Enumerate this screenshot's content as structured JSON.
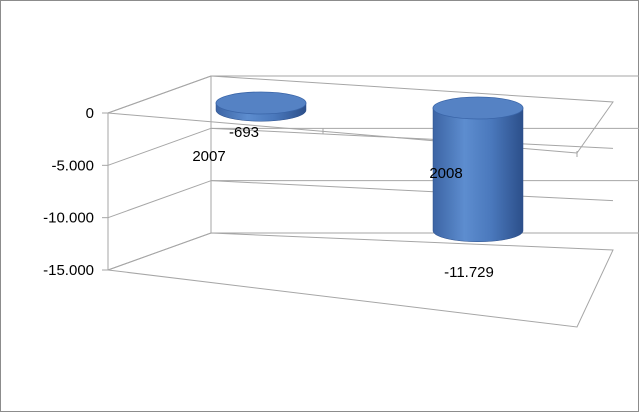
{
  "chart_data": {
    "type": "bar",
    "style": "3d-cylinder",
    "categories": [
      "2007",
      "2008"
    ],
    "series": [
      {
        "values": [
          -693,
          -11729
        ]
      }
    ],
    "value_labels": [
      "-693",
      "-11.729"
    ],
    "ylim": [
      -15000,
      0
    ],
    "yticks": [
      0,
      -5000,
      -10000,
      -15000
    ],
    "ytick_labels": [
      "0",
      "-5.000",
      "-10.000",
      "-15.000"
    ],
    "title": "",
    "xlabel": "",
    "ylabel": "",
    "legend": "none",
    "grid": true,
    "colors": {
      "bar": "#4f81bd",
      "grid": "#a6a6a6",
      "border": "#8c8c8c"
    }
  }
}
